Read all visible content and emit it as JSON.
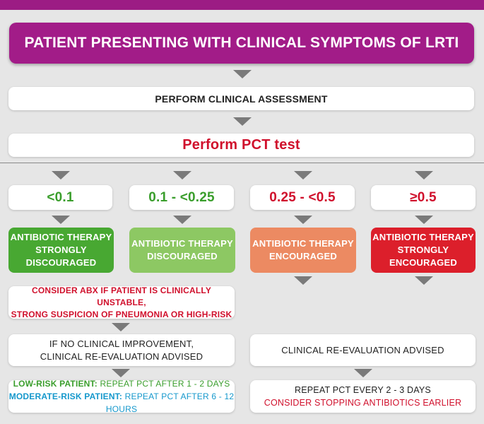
{
  "title": "PATIENT PRESENTING WITH CLINICAL SYMPTOMS OF LRTI",
  "step_assessment": "PERFORM CLINICAL ASSESSMENT",
  "step_pct": "Perform PCT test",
  "thresholds": [
    "<0.1",
    "0.1 - <0.25",
    "0.25 - <0.5",
    "≥0.5"
  ],
  "therapy": [
    {
      "line1": "ANTIBIOTIC THERAPY",
      "line2": "STRONGLY",
      "line3": "DISCOURAGED",
      "color": "#48a832"
    },
    {
      "line1": "ANTIBIOTIC THERAPY",
      "line2": "DISCOURAGED",
      "color": "#8dc863"
    },
    {
      "line1": "ANTIBIOTIC THERAPY",
      "line2": "ENCOURAGED",
      "color": "#ec8a62"
    },
    {
      "line1": "ANTIBIOTIC THERAPY",
      "line2": "STRONGLY",
      "line3": "ENCOURAGED",
      "color": "#dc1f2b"
    }
  ],
  "consider_abx": {
    "line1": "CONSIDER ABX IF PATIENT IS CLINICALLY UNSTABLE,",
    "line2": "STRONG SUSPICION OF PNEUMONIA OR HIGH-RISK"
  },
  "no_improvement": {
    "line1": "IF NO CLINICAL IMPROVEMENT,",
    "line2": "CLINICAL RE-EVALUATION ADVISED"
  },
  "reevaluation": "CLINICAL RE-EVALUATION ADVISED",
  "low_risk": {
    "label": "LOW-RISK PATIENT:",
    "text": "REPEAT PCT AFTER 1 - 2 DAYS"
  },
  "moderate_risk": {
    "label": "MODERATE-RISK PATIENT:",
    "text": "REPEAT PCT AFTER 6 - 12 HOURS"
  },
  "repeat_right": {
    "line1": "REPEAT PCT EVERY 2 - 3 DAYS",
    "line2": "CONSIDER STOPPING ANTIBIOTICS EARLIER"
  },
  "colors": {
    "brand": "#a21c88",
    "green": "#3a9e2c",
    "red": "#d0102c",
    "blue": "#1598cc",
    "arrow": "#7a7a7a"
  }
}
